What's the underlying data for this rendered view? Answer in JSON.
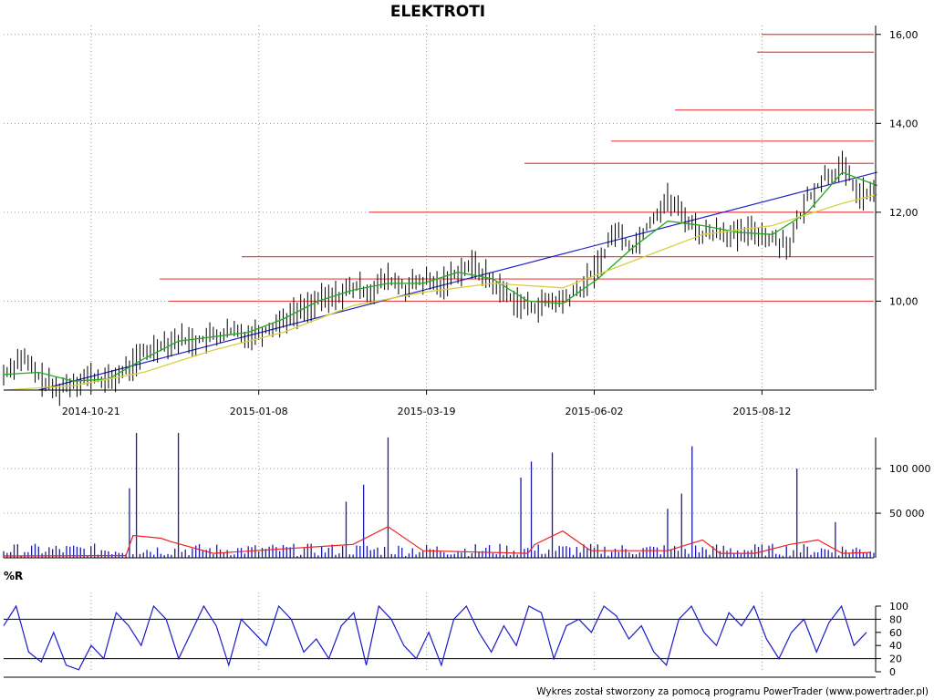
{
  "chart_data": [
    {
      "type": "line",
      "panel": "price",
      "title": "ELEKTROTI",
      "x_ticks": [
        "2014-10-21",
        "2015-01-08",
        "2015-03-19",
        "2015-06-02",
        "2015-08-12"
      ],
      "y_ticks": [
        "10,00",
        "12,00",
        "14,00",
        "16,00"
      ],
      "ylim": [
        8.0,
        16.2
      ],
      "n_sessions": 250,
      "grid": true,
      "series": [
        {
          "role": "close",
          "color": "#000000",
          "points": [
            [
              0,
              8.35
            ],
            [
              5,
              8.75
            ],
            [
              10,
              8.3
            ],
            [
              15,
              8.0
            ],
            [
              20,
              8.2
            ],
            [
              25,
              8.3
            ],
            [
              30,
              8.2
            ],
            [
              35,
              8.45
            ],
            [
              40,
              8.8
            ],
            [
              45,
              9.05
            ],
            [
              50,
              9.15
            ],
            [
              55,
              9.1
            ],
            [
              60,
              9.2
            ],
            [
              65,
              9.3
            ],
            [
              70,
              9.25
            ],
            [
              75,
              9.35
            ],
            [
              80,
              9.6
            ],
            [
              85,
              9.8
            ],
            [
              90,
              10.0
            ],
            [
              95,
              10.1
            ],
            [
              100,
              10.3
            ],
            [
              105,
              10.25
            ],
            [
              110,
              10.5
            ],
            [
              115,
              10.3
            ],
            [
              120,
              10.45
            ],
            [
              125,
              10.35
            ],
            [
              130,
              10.7
            ],
            [
              135,
              10.8
            ],
            [
              140,
              10.4
            ],
            [
              145,
              10.1
            ],
            [
              150,
              9.85
            ],
            [
              155,
              9.95
            ],
            [
              160,
              10.0
            ],
            [
              165,
              10.25
            ],
            [
              170,
              10.8
            ],
            [
              175,
              11.6
            ],
            [
              180,
              11.2
            ],
            [
              185,
              11.8
            ],
            [
              190,
              12.3
            ],
            [
              195,
              11.9
            ],
            [
              200,
              11.5
            ],
            [
              205,
              11.6
            ],
            [
              210,
              11.45
            ],
            [
              215,
              11.6
            ],
            [
              220,
              11.4
            ],
            [
              225,
              11.3
            ],
            [
              230,
              12.3
            ],
            [
              235,
              12.8
            ],
            [
              240,
              13.0
            ],
            [
              245,
              12.4
            ]
          ]
        },
        {
          "role": "moving-average-short",
          "color": "#22aa22",
          "points": [
            [
              0,
              8.35
            ],
            [
              10,
              8.4
            ],
            [
              20,
              8.2
            ],
            [
              30,
              8.25
            ],
            [
              40,
              8.7
            ],
            [
              50,
              9.1
            ],
            [
              60,
              9.2
            ],
            [
              70,
              9.3
            ],
            [
              80,
              9.6
            ],
            [
              90,
              10.0
            ],
            [
              100,
              10.25
            ],
            [
              110,
              10.4
            ],
            [
              120,
              10.4
            ],
            [
              130,
              10.65
            ],
            [
              140,
              10.5
            ],
            [
              150,
              10.0
            ],
            [
              160,
              9.95
            ],
            [
              170,
              10.5
            ],
            [
              180,
              11.2
            ],
            [
              190,
              11.8
            ],
            [
              200,
              11.7
            ],
            [
              210,
              11.55
            ],
            [
              220,
              11.5
            ],
            [
              230,
              12.0
            ],
            [
              240,
              12.9
            ],
            [
              250,
              12.6
            ]
          ]
        },
        {
          "role": "moving-average-long",
          "color": "#d8d040",
          "points": [
            [
              0,
              8.0
            ],
            [
              20,
              8.1
            ],
            [
              40,
              8.4
            ],
            [
              60,
              8.9
            ],
            [
              80,
              9.3
            ],
            [
              100,
              9.9
            ],
            [
              120,
              10.2
            ],
            [
              140,
              10.4
            ],
            [
              160,
              10.3
            ],
            [
              180,
              10.9
            ],
            [
              200,
              11.5
            ],
            [
              220,
              11.7
            ],
            [
              240,
              12.2
            ],
            [
              250,
              12.4
            ]
          ]
        }
      ],
      "resistance_levels": [
        10.0,
        10.5,
        11.0,
        12.0,
        13.1,
        13.6,
        14.3,
        15.6,
        16.0
      ],
      "trendline": {
        "from": [
          10,
          8.0
        ],
        "to": [
          250,
          12.9
        ],
        "color": "#2222cc"
      },
      "level_color": "#ee4444"
    },
    {
      "type": "bar",
      "panel": "volume",
      "y_ticks": [
        "50 000",
        "100 000"
      ],
      "ylim": [
        0,
        140000
      ],
      "bar_color": "#1a1aaa",
      "avg_line_color": "#ee2222",
      "spikes": [
        [
          36,
          78000
        ],
        [
          38,
          140000
        ],
        [
          50,
          140000
        ],
        [
          98,
          63000
        ],
        [
          103,
          82000
        ],
        [
          110,
          135000
        ],
        [
          148,
          90000
        ],
        [
          151,
          108000
        ],
        [
          157,
          118000
        ],
        [
          190,
          55000
        ],
        [
          194,
          72000
        ],
        [
          197,
          125000
        ],
        [
          227,
          100000
        ],
        [
          238,
          40000
        ]
      ],
      "average": [
        [
          0,
          2000
        ],
        [
          35,
          2500
        ],
        [
          37,
          25000
        ],
        [
          45,
          22000
        ],
        [
          48,
          18000
        ],
        [
          60,
          5000
        ],
        [
          100,
          15000
        ],
        [
          110,
          35000
        ],
        [
          120,
          8000
        ],
        [
          150,
          5000
        ],
        [
          152,
          15000
        ],
        [
          160,
          30000
        ],
        [
          168,
          8000
        ],
        [
          190,
          8000
        ],
        [
          200,
          20000
        ],
        [
          205,
          5000
        ],
        [
          215,
          5000
        ],
        [
          225,
          15000
        ],
        [
          233,
          20000
        ],
        [
          240,
          5000
        ],
        [
          248,
          6000
        ]
      ]
    },
    {
      "type": "line",
      "panel": "indicator",
      "title": "%R",
      "y_ticks": [
        "0",
        "20",
        "40",
        "60",
        "80",
        "100"
      ],
      "ylim": [
        0,
        100
      ],
      "levels": [
        20,
        80
      ],
      "line_color": "#1a1acc",
      "values": [
        70,
        100,
        30,
        15,
        60,
        10,
        3,
        40,
        20,
        90,
        70,
        40,
        100,
        80,
        20,
        60,
        100,
        70,
        10,
        80,
        60,
        40,
        100,
        80,
        30,
        50,
        20,
        70,
        90,
        10,
        100,
        80,
        40,
        20,
        60,
        10,
        80,
        100,
        60,
        30,
        70,
        40,
        100,
        90,
        20,
        70,
        80,
        60,
        100,
        85,
        50,
        70,
        30,
        10,
        80,
        100,
        60,
        40,
        90,
        70,
        100,
        50,
        20,
        60,
        80,
        30,
        75,
        100,
        40,
        60
      ]
    }
  ],
  "footer": "Wykres został stworzony za pomocą programu PowerTrader (www.powertrader.pl)"
}
